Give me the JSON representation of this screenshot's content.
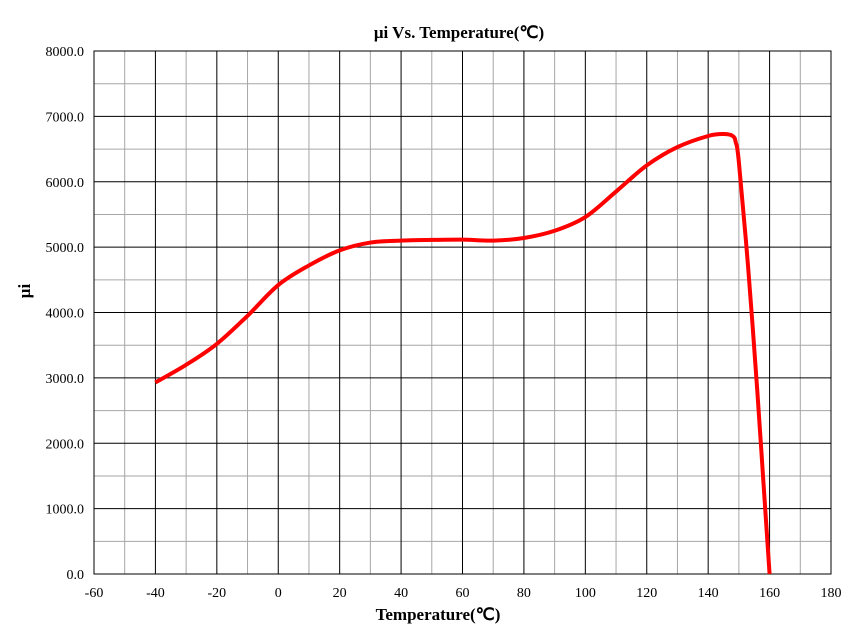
{
  "chart_data": {
    "type": "line",
    "title": "μi Vs. Temperature(℃)",
    "xlabel": "Temperature(℃)",
    "ylabel": "μi",
    "xlim": [
      -60,
      180
    ],
    "ylim": [
      0,
      8000
    ],
    "x_ticks": [
      -60,
      -40,
      -20,
      0,
      20,
      40,
      60,
      80,
      100,
      120,
      140,
      160,
      180
    ],
    "y_ticks": [
      "0.0",
      "1000.0",
      "2000.0",
      "3000.0",
      "4000.0",
      "5000.0",
      "6000.0",
      "7000.0",
      "8000.0"
    ],
    "grid": "major and minor",
    "legend": "none",
    "series": [
      {
        "color": "#ff0000",
        "x": [
          -40,
          -30,
          -20,
          -10,
          0,
          10,
          20,
          30,
          40,
          50,
          60,
          70,
          80,
          90,
          100,
          110,
          120,
          130,
          140,
          145,
          148,
          149,
          150,
          153,
          156,
          158,
          160
        ],
        "y": [
          2930,
          3200,
          3520,
          3950,
          4420,
          4720,
          4950,
          5070,
          5100,
          5110,
          5115,
          5100,
          5140,
          5250,
          5460,
          5850,
          6250,
          6530,
          6700,
          6730,
          6700,
          6600,
          6300,
          4700,
          2800,
          1400,
          0
        ]
      }
    ]
  }
}
